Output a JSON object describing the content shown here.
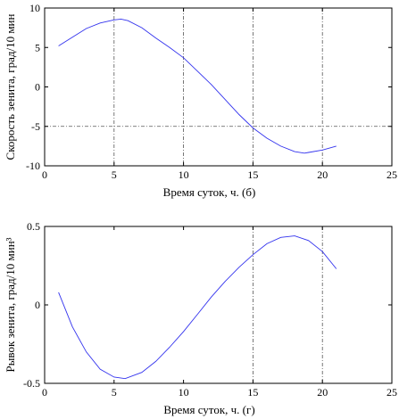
{
  "chart_data": [
    {
      "type": "line",
      "xlabel": "Время суток, ч. (б)",
      "ylabel": "Скорость зенита, град/10 мин",
      "xlim": [
        0,
        25
      ],
      "ylim": [
        -10,
        10
      ],
      "xticks": [
        "0",
        "5",
        "10",
        "15",
        "20",
        "25"
      ],
      "yticks": [
        "10",
        "5",
        "0",
        "-5",
        "-10"
      ],
      "grid": "dash-dot at x = 5, 10, 15, 20; y = -5",
      "series": [
        {
          "color": "#3333ee",
          "x": [
            1,
            2,
            3,
            4,
            5,
            5.5,
            6,
            7,
            8,
            9,
            10,
            11,
            12,
            13,
            14,
            15,
            16,
            17,
            18,
            18.7,
            19,
            20,
            21
          ],
          "y": [
            5.2,
            6.3,
            7.4,
            8.1,
            8.5,
            8.6,
            8.4,
            7.5,
            6.2,
            5.0,
            3.7,
            2.0,
            0.3,
            -1.6,
            -3.5,
            -5.2,
            -6.5,
            -7.5,
            -8.2,
            -8.4,
            -8.3,
            -8.0,
            -7.5
          ]
        }
      ]
    },
    {
      "type": "line",
      "xlabel": "Время суток, ч. (г)",
      "ylabel": "Рывок зенита, град/10 мин³",
      "xlim": [
        0,
        25
      ],
      "ylim": [
        -0.5,
        0.5
      ],
      "xticks": [
        "0",
        "5",
        "10",
        "15",
        "20",
        "25"
      ],
      "yticks": [
        "0.5",
        "0",
        "-0.5"
      ],
      "grid": "dash-dot at x = 15, 20",
      "series": [
        {
          "color": "#3333ee",
          "x": [
            1,
            2,
            3,
            4,
            5,
            5.8,
            7,
            8,
            9,
            10,
            11,
            12,
            13,
            14,
            15,
            16,
            17,
            18,
            19,
            20,
            21
          ],
          "y": [
            0.08,
            -0.14,
            -0.3,
            -0.41,
            -0.46,
            -0.47,
            -0.43,
            -0.36,
            -0.27,
            -0.17,
            -0.06,
            0.05,
            0.15,
            0.24,
            0.32,
            0.39,
            0.43,
            0.44,
            0.41,
            0.34,
            0.23
          ]
        }
      ]
    }
  ]
}
